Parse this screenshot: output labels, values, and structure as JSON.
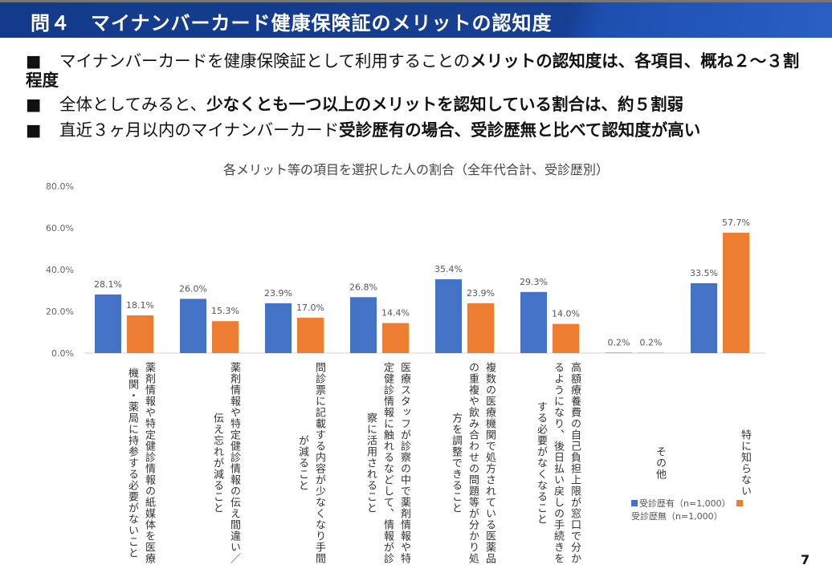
{
  "header": {
    "title": "問４　マイナンバーカード健康保険証のメリットの認知度"
  },
  "bullets": [
    {
      "marker": "■",
      "normal": "マイナンバーカードを健康保険証として利用することの",
      "bold": "メリットの認知度は、各項目、概ね２～３割程度",
      "tail": ""
    },
    {
      "marker": "■",
      "normal": "全体としてみると、",
      "bold": "少なくとも一つ以上のメリットを認知している割合は、約５割弱",
      "tail": ""
    },
    {
      "marker": "■",
      "normal": "直近３ヶ月以内のマイナンバーカード",
      "bold": "受診歴有の場合、受診歴無と比べて認知度が高い",
      "tail": ""
    }
  ],
  "chart_data": {
    "type": "bar",
    "title": "各メリット等の項目を選択した人の割合（全年代合計、受診歴別）",
    "categories": [
      "薬剤情報や特定健診情報の紙媒体を医療\n機関・薬局に持参する必要がないこと",
      "薬剤情報や特定健診情報の伝え間違い／\n伝え忘れが減ること",
      "問診票に記載する内容が少なくなり手間\nが減ること",
      "医療スタッフが診察の中で薬剤情報や特\n定健診情報に触れるなどして、情報が診\n察に活用されること",
      "複数の医療機関で処方されている医薬品\nの重複や飲み合わせの問題等が分かり処\n方を調整できること",
      "高額療養費の自己負担上限が窓口で分か\nるようになり、後日払い戻しの手続きを\nする必要がなくなること",
      "その他",
      "特に知らない"
    ],
    "series": [
      {
        "name": "受診歴有（n=1,000）",
        "color": "#4472C4",
        "values": [
          28.1,
          26.0,
          23.9,
          26.8,
          35.4,
          29.3,
          0.2,
          33.5
        ]
      },
      {
        "name": "受診歴無（n=1,000）",
        "color": "#ED7D31",
        "values": [
          18.1,
          15.3,
          17.0,
          14.4,
          23.9,
          14.0,
          0.2,
          57.7
        ]
      }
    ],
    "ylim": [
      0,
      80
    ],
    "yticks": [
      "0.0%",
      "20.0%",
      "40.0%",
      "60.0%",
      "80.0%"
    ],
    "grid": false,
    "legend": "bottom-right"
  },
  "page_number": "7"
}
